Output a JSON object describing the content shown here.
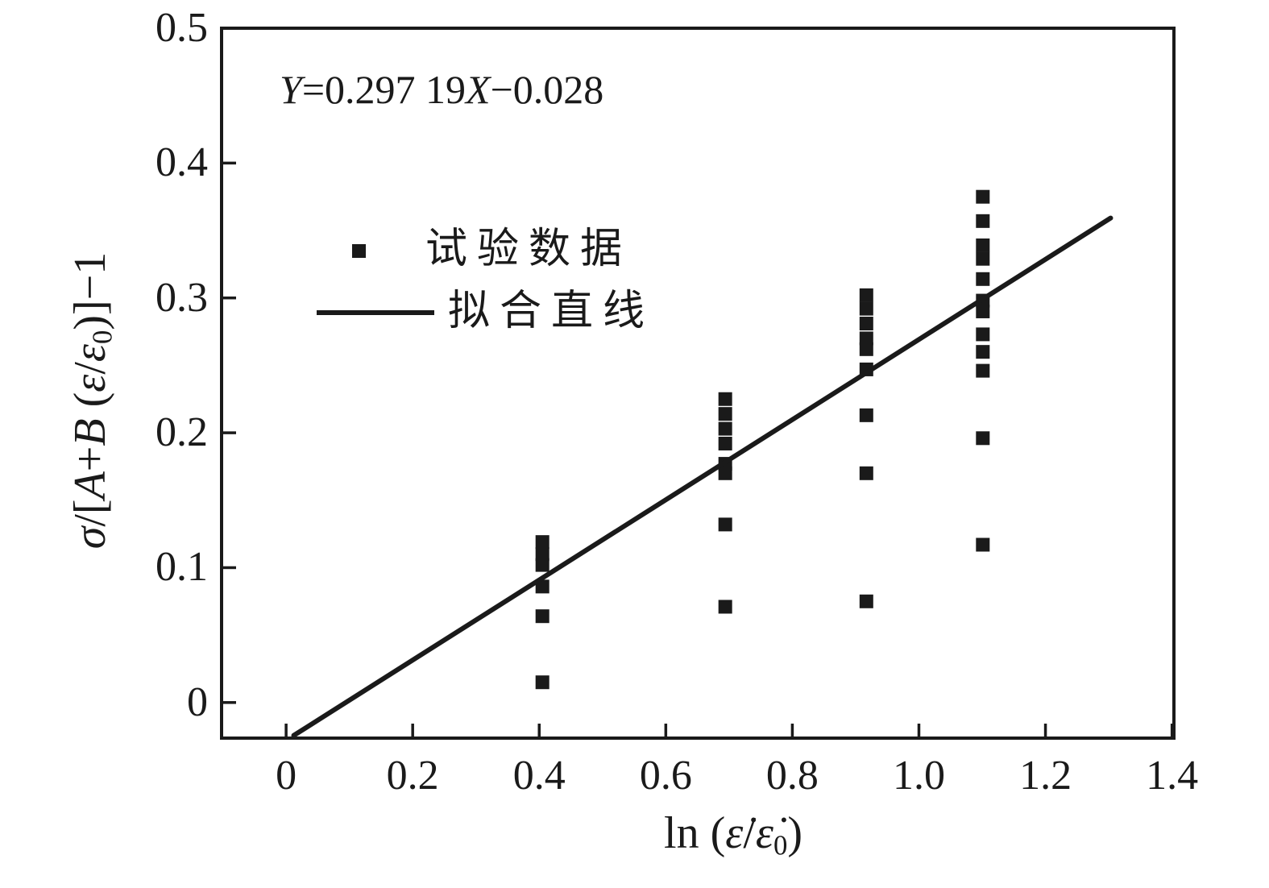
{
  "figure": {
    "background": "#ffffff",
    "ink_color": "#1a1a1a"
  },
  "chart_data": {
    "type": "scatter",
    "title": "",
    "equation_annotation": {
      "text": "Y=0.297 19X−0.028",
      "parts": [
        {
          "t": "Y",
          "i": true
        },
        {
          "t": "=0.297 19"
        },
        {
          "t": "X",
          "i": true
        },
        {
          "t": "−0.028"
        }
      ]
    },
    "xlabel": {
      "text": "ln (ε̇/ε̇₀)",
      "parts": [
        {
          "t": "ln ("
        },
        {
          "t": "ε̇",
          "i": true
        },
        {
          "t": "/"
        },
        {
          "t": "ε̇",
          "i": true
        },
        {
          "t": "0",
          "sub": true
        },
        {
          "t": ")"
        }
      ]
    },
    "ylabel": {
      "text": "σ/[A+B (ε/ε₀)]−1",
      "parts": [
        {
          "t": "σ",
          "i": true
        },
        {
          "t": "/["
        },
        {
          "t": "A",
          "i": true
        },
        {
          "t": "+"
        },
        {
          "t": "B",
          "i": true
        },
        {
          "t": " ("
        },
        {
          "t": "ε",
          "i": true
        },
        {
          "t": "/"
        },
        {
          "t": "ε",
          "i": true
        },
        {
          "t": "0",
          "sub": true
        },
        {
          "t": ")]−1"
        }
      ]
    },
    "xlim": [
      -0.102,
      1.403
    ],
    "ylim": [
      -0.0264,
      0.5
    ],
    "grid": false,
    "xticks": {
      "values": [
        0,
        0.2,
        0.4,
        0.6,
        0.8,
        1.0,
        1.2,
        1.4
      ],
      "labels": [
        "0",
        "0.2",
        "0.4",
        "0.6",
        "0.8",
        "1.0",
        "1.2",
        "1.4"
      ]
    },
    "yticks": {
      "values": [
        0,
        0.1,
        0.2,
        0.3,
        0.4,
        0.5
      ],
      "labels": [
        "0",
        "0.1",
        "0.2",
        "0.3",
        "0.4",
        "0.5"
      ]
    },
    "legend": {
      "position": "upper-left-inside",
      "items": [
        {
          "label": "试验数据",
          "marker": "square"
        },
        {
          "label": "拟合直线",
          "marker": "line"
        }
      ]
    },
    "series": [
      {
        "name": "试验数据",
        "type": "scatter",
        "marker": "square",
        "color": "#1a1a1a",
        "marker_size_px": 17,
        "points": [
          [
            0.405,
            0.119
          ],
          [
            0.405,
            0.11
          ],
          [
            0.405,
            0.102
          ],
          [
            0.405,
            0.086
          ],
          [
            0.405,
            0.064
          ],
          [
            0.405,
            0.015
          ],
          [
            0.694,
            0.225
          ],
          [
            0.694,
            0.214
          ],
          [
            0.694,
            0.203
          ],
          [
            0.694,
            0.192
          ],
          [
            0.694,
            0.177
          ],
          [
            0.694,
            0.17
          ],
          [
            0.694,
            0.132
          ],
          [
            0.694,
            0.071
          ],
          [
            0.917,
            0.302
          ],
          [
            0.917,
            0.292
          ],
          [
            0.917,
            0.281
          ],
          [
            0.917,
            0.27
          ],
          [
            0.917,
            0.262
          ],
          [
            0.917,
            0.247
          ],
          [
            0.917,
            0.213
          ],
          [
            0.917,
            0.17
          ],
          [
            0.917,
            0.075
          ],
          [
            1.101,
            0.375
          ],
          [
            1.101,
            0.357
          ],
          [
            1.101,
            0.339
          ],
          [
            1.101,
            0.329
          ],
          [
            1.101,
            0.314
          ],
          [
            1.101,
            0.298
          ],
          [
            1.101,
            0.29
          ],
          [
            1.101,
            0.273
          ],
          [
            1.101,
            0.26
          ],
          [
            1.101,
            0.246
          ],
          [
            1.101,
            0.196
          ],
          [
            1.101,
            0.117
          ]
        ]
      },
      {
        "name": "拟合直线",
        "type": "line",
        "color": "#1a1a1a",
        "slope": 0.29719,
        "intercept": -0.028,
        "x_range": [
          0.012,
          1.303
        ],
        "stroke_width_px": 6
      }
    ]
  }
}
